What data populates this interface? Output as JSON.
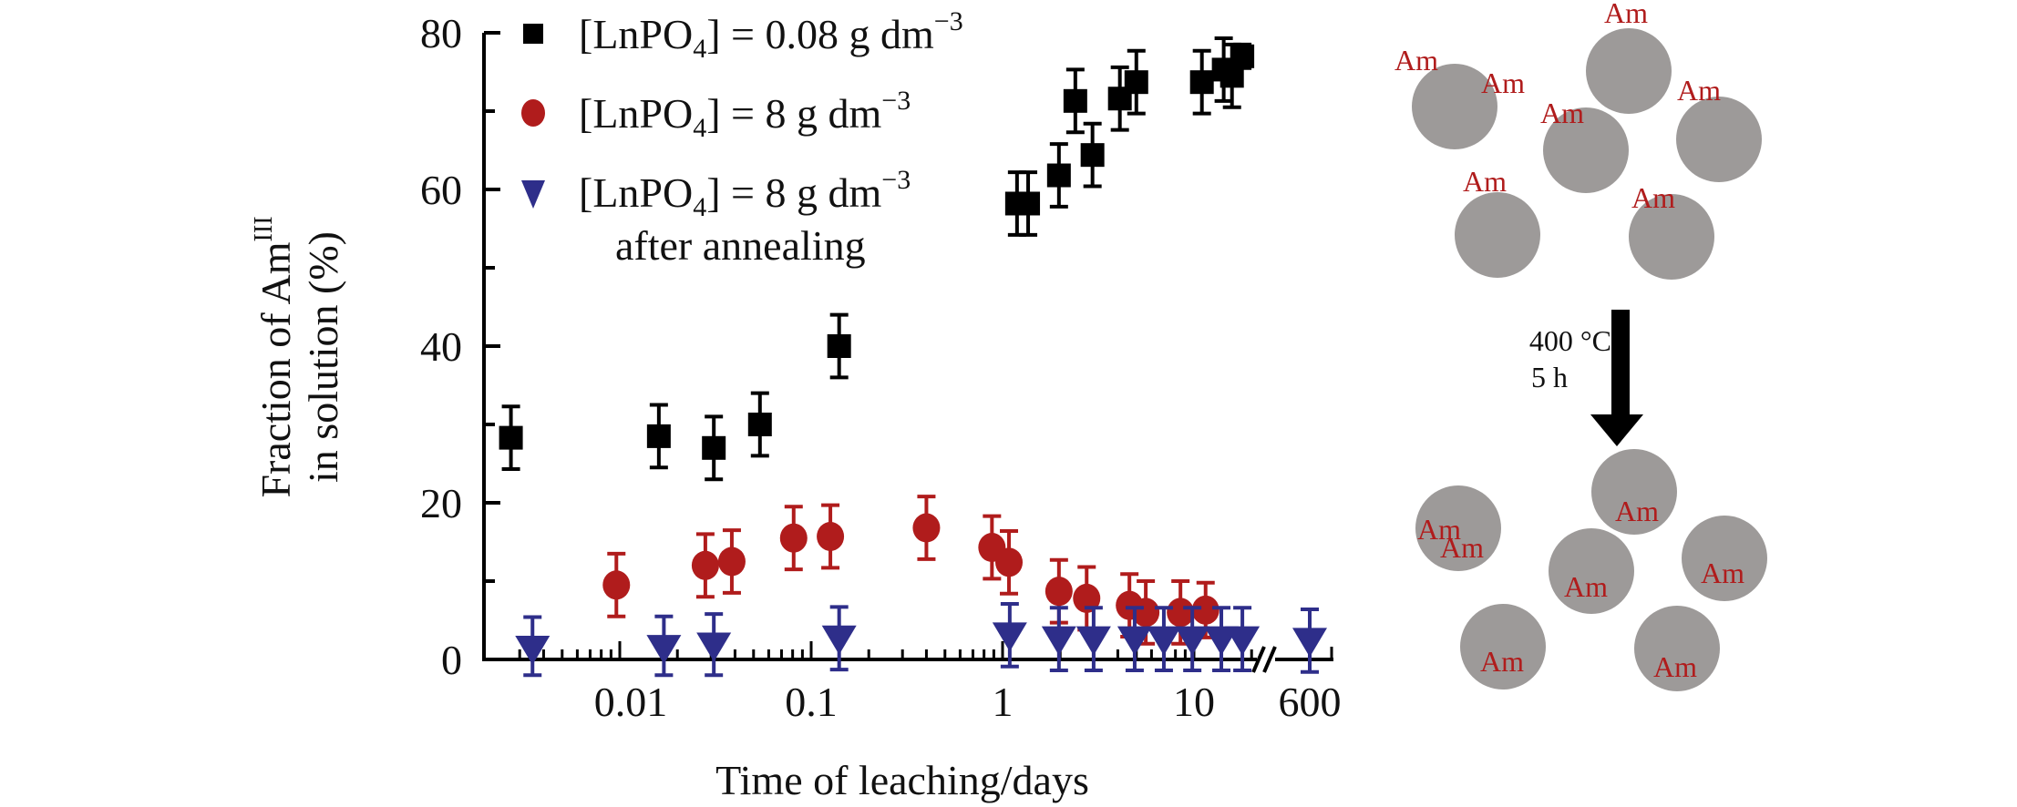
{
  "chart_data": {
    "type": "scatter",
    "title": "",
    "xlabel": "Time of leaching/days",
    "ylabel": "Fraction of Am",
    "ylabel_superscript": "III",
    "ylabel_line2": "in solution (%)",
    "x_scale": "log",
    "x_axis_break": true,
    "xlim": [
      0.0028,
      600
    ],
    "ylim": [
      0,
      80
    ],
    "x_ticks": [
      {
        "value": 0.01,
        "label": "0.01"
      },
      {
        "value": 0.1,
        "label": "0.1"
      },
      {
        "value": 1,
        "label": "1"
      },
      {
        "value": 10,
        "label": "10"
      },
      {
        "value": 600,
        "label": "600"
      }
    ],
    "y_ticks": [
      {
        "value": 0,
        "label": "0"
      },
      {
        "value": 20,
        "label": "20"
      },
      {
        "value": 40,
        "label": "40"
      },
      {
        "value": 60,
        "label": "60"
      },
      {
        "value": 80,
        "label": "80"
      }
    ],
    "y_minor_ticks": [
      10,
      30,
      50,
      70
    ],
    "grid": false,
    "legend_position": "top-left",
    "series": [
      {
        "name": "[LnPO4] = 0.08 g dm-3",
        "legend_main": "[LnPO",
        "legend_sub": "4",
        "legend_rest": "] = 0.08 g dm",
        "legend_sup": "−3",
        "legend_line2": "",
        "marker": "square",
        "color": "#000000",
        "points": [
          {
            "x": 0.0027,
            "y": 28.3,
            "err": 4
          },
          {
            "x": 0.016,
            "y": 28.5,
            "err": 4
          },
          {
            "x": 0.031,
            "y": 27.0,
            "err": 4
          },
          {
            "x": 0.054,
            "y": 30.0,
            "err": 4
          },
          {
            "x": 0.14,
            "y": 40.0,
            "err": 4
          },
          {
            "x": 1.19,
            "y": 58.2,
            "err": 4
          },
          {
            "x": 1.36,
            "y": 58.2,
            "err": 4
          },
          {
            "x": 1.97,
            "y": 61.8,
            "err": 4
          },
          {
            "x": 2.4,
            "y": 71.3,
            "err": 4
          },
          {
            "x": 2.95,
            "y": 64.4,
            "err": 4
          },
          {
            "x": 4.1,
            "y": 71.6,
            "err": 4
          },
          {
            "x": 5.0,
            "y": 73.7,
            "err": 4
          },
          {
            "x": 11.0,
            "y": 73.7,
            "err": 4
          },
          {
            "x": 14.3,
            "y": 75.3,
            "err": 4
          },
          {
            "x": 15.8,
            "y": 74.5,
            "err": 4
          },
          {
            "x": 17.9,
            "y": 77.0,
            "err": 1.5
          }
        ]
      },
      {
        "name": "[LnPO4] = 8 g dm-3",
        "legend_main": "[LnPO",
        "legend_sub": "4",
        "legend_rest": "] = 8 g dm",
        "legend_sup": "−3",
        "legend_line2": "",
        "marker": "circle",
        "color": "#b01c1c",
        "points": [
          {
            "x": 0.0096,
            "y": 9.5,
            "err": 4
          },
          {
            "x": 0.028,
            "y": 12.0,
            "err": 4
          },
          {
            "x": 0.0385,
            "y": 12.5,
            "err": 4
          },
          {
            "x": 0.081,
            "y": 15.5,
            "err": 4
          },
          {
            "x": 0.126,
            "y": 15.7,
            "err": 4
          },
          {
            "x": 0.4,
            "y": 16.8,
            "err": 4
          },
          {
            "x": 0.88,
            "y": 14.3,
            "err": 4
          },
          {
            "x": 1.08,
            "y": 12.4,
            "err": 4
          },
          {
            "x": 1.97,
            "y": 8.7,
            "err": 4
          },
          {
            "x": 2.75,
            "y": 7.8,
            "err": 4
          },
          {
            "x": 4.6,
            "y": 6.9,
            "err": 4
          },
          {
            "x": 5.6,
            "y": 6.0,
            "err": 4
          },
          {
            "x": 8.5,
            "y": 6.0,
            "err": 4
          },
          {
            "x": 11.5,
            "y": 6.3,
            "err": 3.5
          }
        ]
      },
      {
        "name": "[LnPO4] = 8 g dm-3 after annealing",
        "legend_main": "[LnPO",
        "legend_sub": "4",
        "legend_rest": "] = 8 g dm",
        "legend_sup": "−3",
        "legend_line2": "after annealing",
        "marker": "triangle-down",
        "color": "#2e2e8a",
        "points": [
          {
            "x": 0.0035,
            "y": 1.4,
            "err": 4
          },
          {
            "x": 0.017,
            "y": 1.5,
            "err": 4
          },
          {
            "x": 0.031,
            "y": 1.8,
            "err": 4
          },
          {
            "x": 0.14,
            "y": 2.7,
            "err": 4
          },
          {
            "x": 1.09,
            "y": 3.1,
            "err": 4
          },
          {
            "x": 1.97,
            "y": 2.6,
            "err": 4
          },
          {
            "x": 2.99,
            "y": 2.6,
            "err": 4
          },
          {
            "x": 4.9,
            "y": 2.6,
            "err": 4
          },
          {
            "x": 6.96,
            "y": 2.6,
            "err": 4
          },
          {
            "x": 9.8,
            "y": 2.6,
            "err": 4
          },
          {
            "x": 13.9,
            "y": 2.6,
            "err": 4
          },
          {
            "x": 17.9,
            "y": 2.6,
            "err": 4
          },
          {
            "x": 600,
            "y": 2.4,
            "err": 4
          }
        ]
      }
    ]
  },
  "schematic": {
    "element_label": "Am",
    "particle_color": "#9d9a99",
    "label_color": "#b01c1c",
    "treatment_line1": "400 °C",
    "treatment_line2": "5 h",
    "before_label_count": 7,
    "after_label_count": 7
  }
}
